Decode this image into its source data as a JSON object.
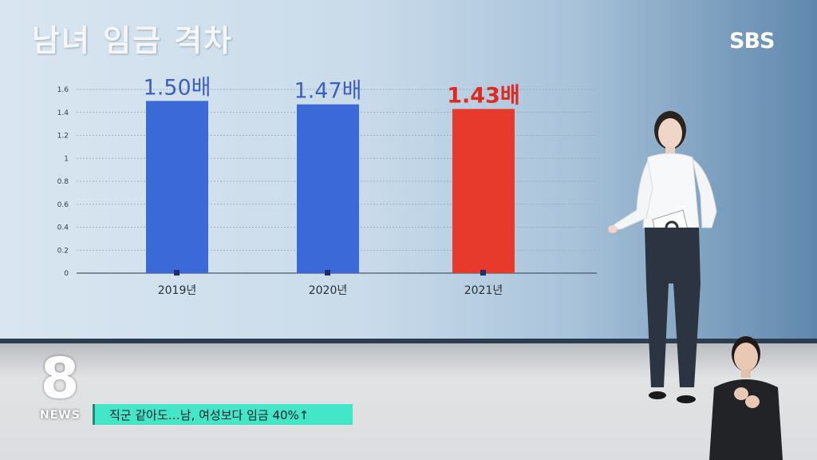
{
  "title": "남녀 임금 격차",
  "broadcaster": "SBS",
  "news_logo": {
    "number": "8",
    "text": "NEWS"
  },
  "caption": "직군 같아도…남, 여성보다 임금 40%↑",
  "colors": {
    "bar_blue": "#3b6ad8",
    "bar_red": "#e83a2c",
    "label_blue": "#3d5fc2",
    "label_red": "#e02a20",
    "caption_bg": "#43e6c7"
  },
  "chart_data": {
    "type": "bar",
    "title": "남녀 임금 격차",
    "categories": [
      "2019년",
      "2020년",
      "2021년"
    ],
    "values": [
      1.5,
      1.47,
      1.43
    ],
    "data_labels": [
      "1.50배",
      "1.47배",
      "1.43배"
    ],
    "bar_colors": [
      "#3b6ad8",
      "#3b6ad8",
      "#e83a2c"
    ],
    "label_colors": [
      "#3d5fc2",
      "#3d5fc2",
      "#e02a20"
    ],
    "yticks": [
      "0",
      "0.2",
      "0.4",
      "0.6",
      "0.8",
      "1",
      "1.2",
      "1.4",
      "1.6"
    ],
    "ylim": [
      0,
      1.6
    ],
    "grid": true,
    "xlabel": "",
    "ylabel": ""
  }
}
